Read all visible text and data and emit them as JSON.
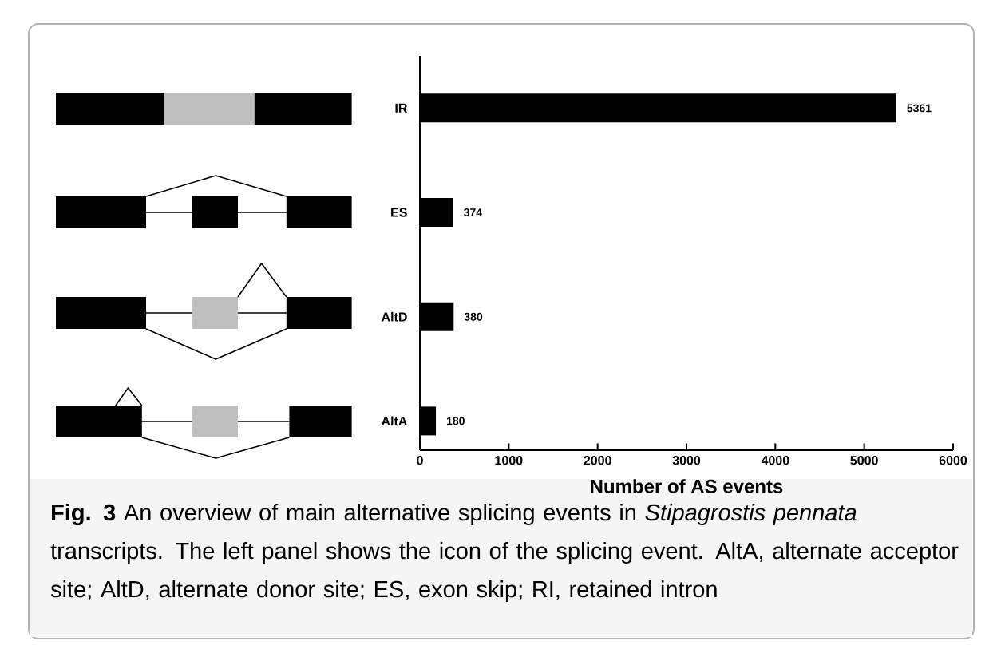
{
  "chart_data": {
    "type": "bar",
    "orientation": "horizontal",
    "categories": [
      "IR",
      "ES",
      "AltD",
      "AltA"
    ],
    "values": [
      5361,
      374,
      380,
      180
    ],
    "color": "#000000",
    "xlim": [
      0,
      6000
    ],
    "xticks": [
      0,
      1000,
      2000,
      3000,
      4000,
      5000,
      6000
    ],
    "xlabel": "Number of AS events",
    "data_labels": true,
    "annotations": [
      "**Fig. 3** An overview of main alternative splicing events in *Stipagrostis pennata* transcripts. The left panel shows the icon of the splicing event. AltA, alternate acceptor site; AltD, alternate donor site; ES, exon skip; RI, retained intron"
    ]
  }
}
